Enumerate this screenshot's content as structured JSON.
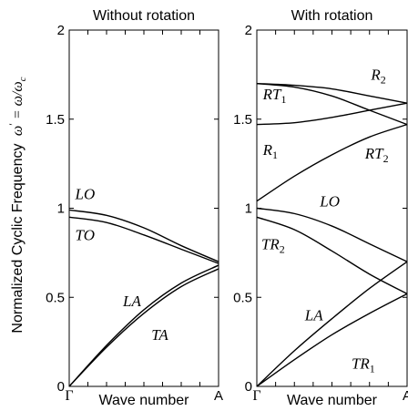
{
  "ylabel": {
    "text": "Normalized Cyclic Frequency",
    "math_lhs": "ω",
    "math_prime": "′",
    "math_eq": " = ω/ω",
    "math_sub": "c"
  },
  "chart_data": [
    {
      "type": "line",
      "title": "Without rotation",
      "xlabel": "Wave number",
      "x_tick_labels": [
        "Γ",
        "A"
      ],
      "xlim": [
        0,
        1
      ],
      "ylim": [
        0,
        2
      ],
      "y_ticks": [
        "0",
        "0.5",
        "1",
        "1.5",
        "2"
      ],
      "series": [
        {
          "name": "LO",
          "points": [
            [
              0,
              0.99
            ],
            [
              0.25,
              0.96
            ],
            [
              0.5,
              0.89
            ],
            [
              0.75,
              0.79
            ],
            [
              1.0,
              0.7
            ]
          ]
        },
        {
          "name": "TO",
          "points": [
            [
              0,
              0.95
            ],
            [
              0.25,
              0.92
            ],
            [
              0.5,
              0.85
            ],
            [
              0.75,
              0.77
            ],
            [
              1.0,
              0.69
            ]
          ]
        },
        {
          "name": "LA",
          "points": [
            [
              0,
              0.0
            ],
            [
              0.25,
              0.23
            ],
            [
              0.5,
              0.43
            ],
            [
              0.75,
              0.58
            ],
            [
              1.0,
              0.68
            ]
          ]
        },
        {
          "name": "TA",
          "points": [
            [
              0,
              0.0
            ],
            [
              0.25,
              0.22
            ],
            [
              0.5,
              0.41
            ],
            [
              0.75,
              0.56
            ],
            [
              1.0,
              0.66
            ]
          ]
        }
      ],
      "curve_labels": [
        {
          "base": "LO",
          "sub": "",
          "x": 0.04,
          "y": 1.05
        },
        {
          "base": "TO",
          "sub": "",
          "x": 0.04,
          "y": 0.82
        },
        {
          "base": "LA",
          "sub": "",
          "x": 0.36,
          "y": 0.45
        },
        {
          "base": "TA",
          "sub": "",
          "x": 0.55,
          "y": 0.26
        }
      ]
    },
    {
      "type": "line",
      "title": "With rotation",
      "xlabel": "Wave number",
      "x_tick_labels": [
        "Γ",
        "A"
      ],
      "xlim": [
        0,
        1
      ],
      "ylim": [
        0,
        2
      ],
      "y_ticks": [
        "0",
        "0.5",
        "1",
        "1.5",
        "2"
      ],
      "series": [
        {
          "name": "R2",
          "points": [
            [
              0,
              1.7
            ],
            [
              0.25,
              1.69
            ],
            [
              0.5,
              1.67
            ],
            [
              0.75,
              1.63
            ],
            [
              1.0,
              1.59
            ]
          ]
        },
        {
          "name": "RT1",
          "points": [
            [
              0,
              1.7
            ],
            [
              0.25,
              1.68
            ],
            [
              0.5,
              1.63
            ],
            [
              0.75,
              1.55
            ],
            [
              1.0,
              1.47
            ]
          ]
        },
        {
          "name": "R1",
          "points": [
            [
              0,
              1.47
            ],
            [
              0.25,
              1.48
            ],
            [
              0.5,
              1.51
            ],
            [
              0.75,
              1.55
            ],
            [
              1.0,
              1.59
            ]
          ]
        },
        {
          "name": "RT2",
          "points": [
            [
              0,
              1.04
            ],
            [
              0.25,
              1.18
            ],
            [
              0.5,
              1.3
            ],
            [
              0.75,
              1.4
            ],
            [
              1.0,
              1.47
            ]
          ]
        },
        {
          "name": "LO",
          "points": [
            [
              0,
              1.0
            ],
            [
              0.25,
              0.97
            ],
            [
              0.5,
              0.9
            ],
            [
              0.75,
              0.8
            ],
            [
              1.0,
              0.7
            ]
          ]
        },
        {
          "name": "TR2",
          "points": [
            [
              0,
              0.95
            ],
            [
              0.25,
              0.88
            ],
            [
              0.5,
              0.76
            ],
            [
              0.75,
              0.63
            ],
            [
              1.0,
              0.52
            ]
          ]
        },
        {
          "name": "LA",
          "points": [
            [
              0,
              0.0
            ],
            [
              0.25,
              0.2
            ],
            [
              0.5,
              0.38
            ],
            [
              0.75,
              0.55
            ],
            [
              1.0,
              0.7
            ]
          ]
        },
        {
          "name": "TR1",
          "points": [
            [
              0,
              0.0
            ],
            [
              0.25,
              0.15
            ],
            [
              0.5,
              0.29
            ],
            [
              0.75,
              0.41
            ],
            [
              1.0,
              0.52
            ]
          ]
        }
      ],
      "curve_labels": [
        {
          "base": "RT",
          "sub": "1",
          "x": 0.04,
          "y": 1.61
        },
        {
          "base": "R",
          "sub": "2",
          "x": 0.76,
          "y": 1.72
        },
        {
          "base": "R",
          "sub": "1",
          "x": 0.04,
          "y": 1.3
        },
        {
          "base": "RT",
          "sub": "2",
          "x": 0.72,
          "y": 1.28
        },
        {
          "base": "LO",
          "sub": "",
          "x": 0.42,
          "y": 1.01
        },
        {
          "base": "TR",
          "sub": "2",
          "x": 0.03,
          "y": 0.77
        },
        {
          "base": "LA",
          "sub": "",
          "x": 0.32,
          "y": 0.37
        },
        {
          "base": "TR",
          "sub": "1",
          "x": 0.63,
          "y": 0.1
        }
      ]
    }
  ]
}
